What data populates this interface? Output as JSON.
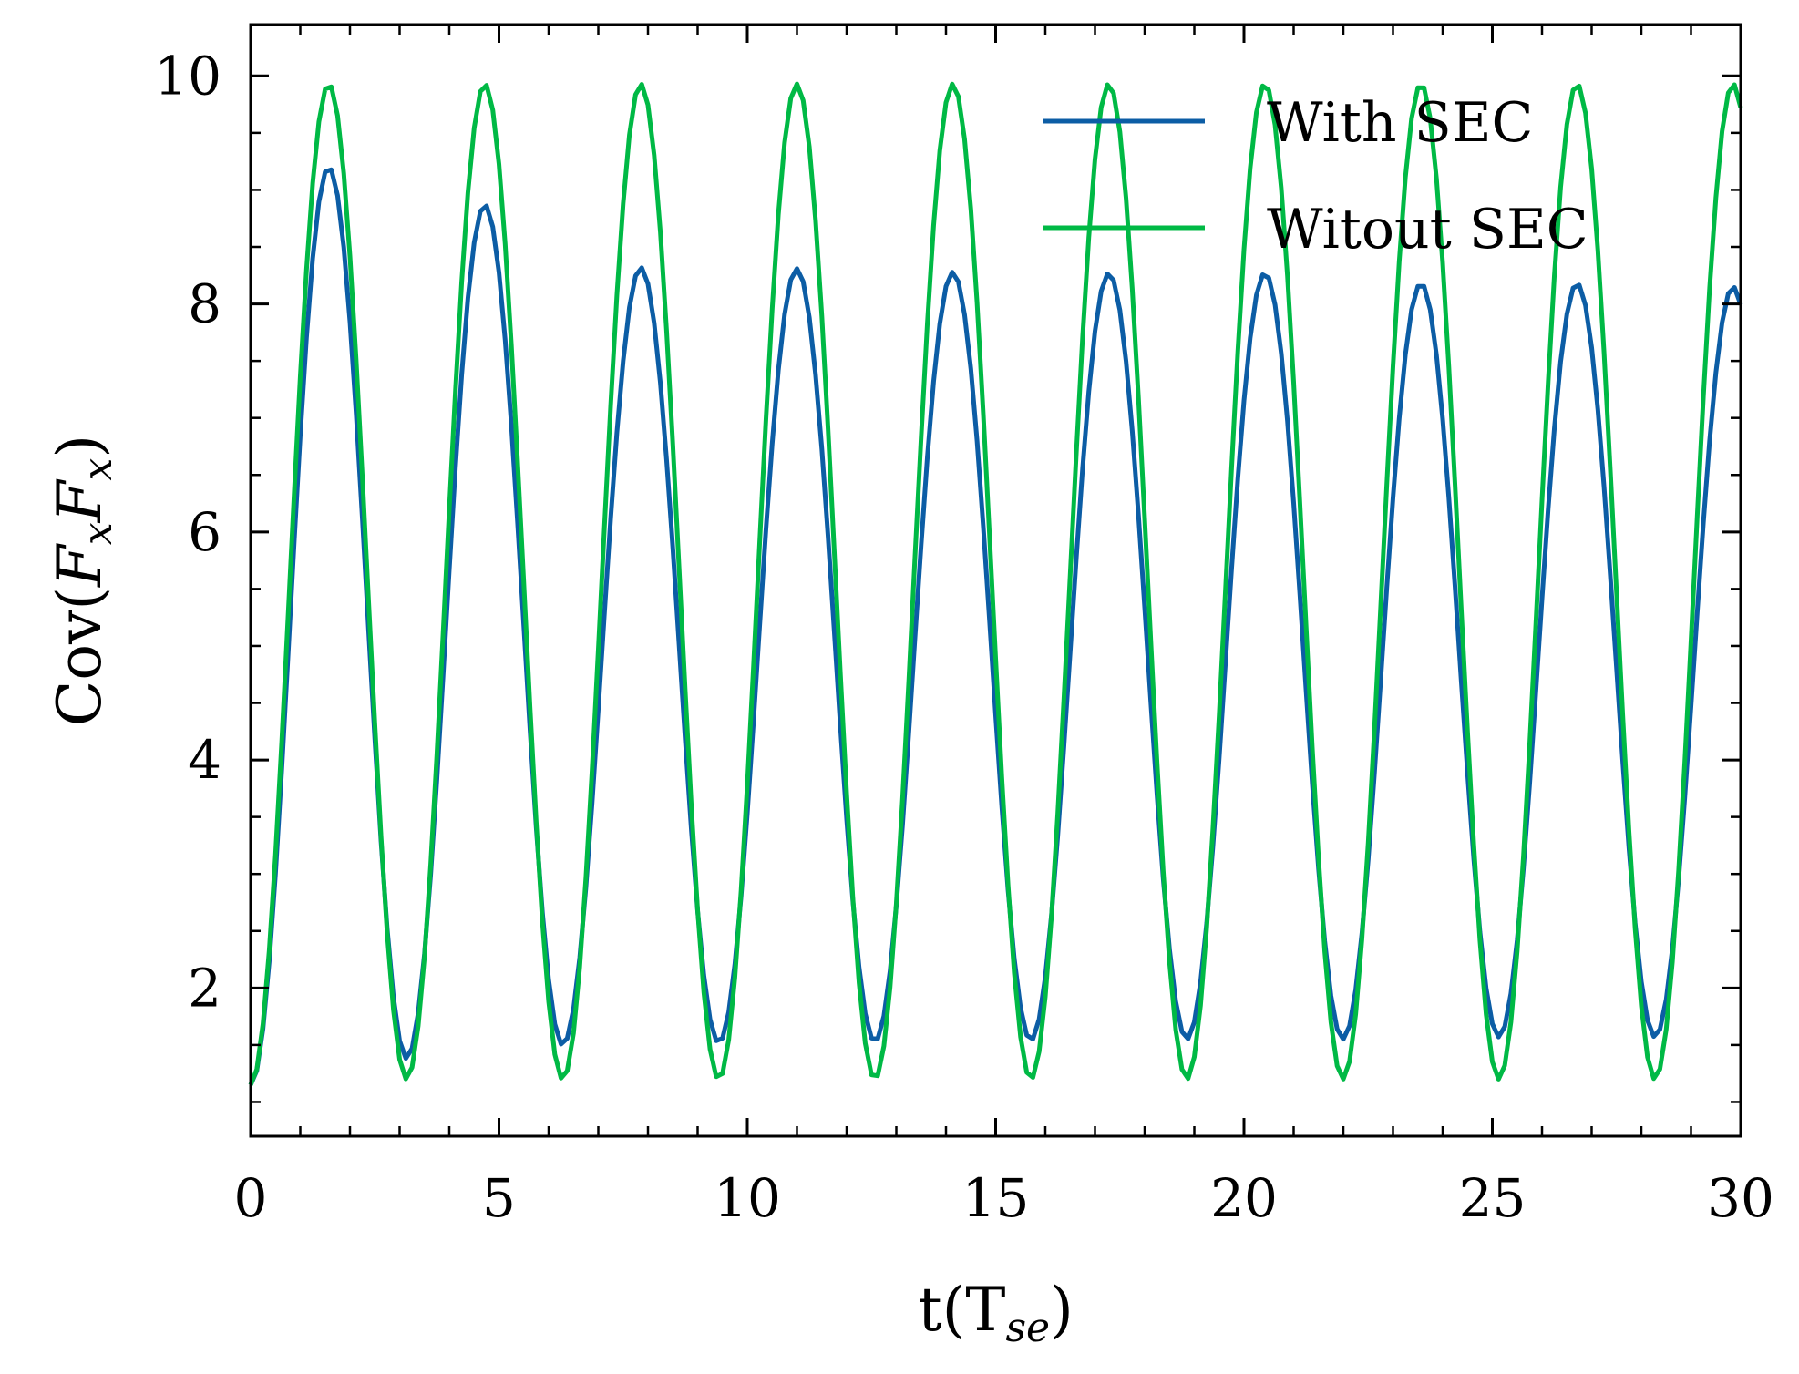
{
  "chart_data": {
    "type": "line",
    "title": "",
    "xlabel": "t(T",
    "xlabel_sub": "se",
    "xlabel_close": ")",
    "ylabel": "Cov(",
    "ylabel_var1": "F",
    "ylabel_sub1": "x",
    "ylabel_var2": "F",
    "ylabel_sub2": "x",
    "ylabel_close": ")",
    "xlim": [
      0,
      30
    ],
    "ylim": [
      0.7,
      10.45
    ],
    "xticks": [
      0,
      5,
      10,
      15,
      20,
      25,
      30
    ],
    "yticks": [
      2,
      4,
      6,
      8,
      10
    ],
    "legend_position": "top-right",
    "grid": false,
    "series": [
      {
        "name": "With SEC",
        "color": "#0C5DA5",
        "model": "cosine",
        "baseline": 1.15,
        "period": 3.14159,
        "x_start": 0,
        "x_end": 30,
        "peaks": [
          {
            "x": 1.571,
            "y": 9.2
          },
          {
            "x": 4.712,
            "y": 8.87
          },
          {
            "x": 7.854,
            "y": 8.32
          },
          {
            "x": 10.996,
            "y": 8.31
          },
          {
            "x": 14.137,
            "y": 8.28
          },
          {
            "x": 17.279,
            "y": 8.27
          },
          {
            "x": 20.42,
            "y": 8.27
          },
          {
            "x": 23.562,
            "y": 8.18
          },
          {
            "x": 26.704,
            "y": 8.18
          },
          {
            "x": 29.845,
            "y": 8.15
          }
        ],
        "troughs": [
          {
            "x": 0.0,
            "y": 1.15
          },
          {
            "x": 3.142,
            "y": 1.38
          },
          {
            "x": 6.283,
            "y": 1.5
          },
          {
            "x": 9.425,
            "y": 1.52
          },
          {
            "x": 12.566,
            "y": 1.53
          },
          {
            "x": 15.708,
            "y": 1.54
          },
          {
            "x": 18.85,
            "y": 1.55
          },
          {
            "x": 21.991,
            "y": 1.55
          },
          {
            "x": 25.133,
            "y": 1.57
          },
          {
            "x": 28.274,
            "y": 1.57
          }
        ]
      },
      {
        "name": "Witout SEC",
        "color": "#00B945",
        "model": "cosine",
        "period": 3.14159,
        "x_start": 0,
        "x_end": 30,
        "peaks": [
          {
            "x": 1.571,
            "y": 9.93
          },
          {
            "x": 4.712,
            "y": 9.93
          },
          {
            "x": 7.854,
            "y": 9.93
          },
          {
            "x": 10.996,
            "y": 9.93
          },
          {
            "x": 14.137,
            "y": 9.93
          },
          {
            "x": 17.279,
            "y": 9.93
          },
          {
            "x": 20.42,
            "y": 9.93
          },
          {
            "x": 23.562,
            "y": 9.93
          },
          {
            "x": 26.704,
            "y": 9.93
          },
          {
            "x": 29.845,
            "y": 9.93
          }
        ],
        "troughs": [
          {
            "x": 0.0,
            "y": 1.15
          },
          {
            "x": 3.142,
            "y": 1.2
          },
          {
            "x": 6.283,
            "y": 1.2
          },
          {
            "x": 9.425,
            "y": 1.2
          },
          {
            "x": 12.566,
            "y": 1.2
          },
          {
            "x": 15.708,
            "y": 1.2
          },
          {
            "x": 18.85,
            "y": 1.2
          },
          {
            "x": 21.991,
            "y": 1.2
          },
          {
            "x": 25.133,
            "y": 1.2
          },
          {
            "x": 28.274,
            "y": 1.2
          }
        ]
      }
    ]
  }
}
